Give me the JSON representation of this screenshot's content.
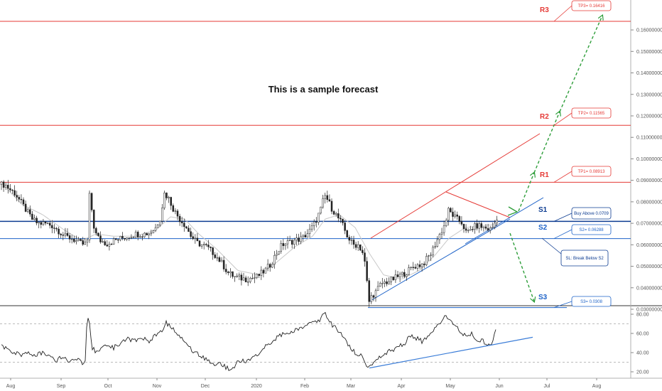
{
  "chart_data": {
    "type": "candlestick",
    "annotation": "This is a sample forecast",
    "price_axis": {
      "ylim": [
        0.0295,
        0.168
      ],
      "ticks": [
        0.03,
        0.04,
        0.05,
        0.06,
        0.07,
        0.08,
        0.09,
        0.1,
        0.11,
        0.12,
        0.13,
        0.14,
        0.15,
        0.16
      ],
      "tick_labels": [
        "0.03000000",
        "0.04000000",
        "0.05000000",
        "0.06000000",
        "0.07000000",
        "0.08000000",
        "0.09000000",
        "0.10000000",
        "0.11000000",
        "0.12000000",
        "0.13000000",
        "0.14000000",
        "0.15000000",
        "0.16000000"
      ]
    },
    "rsi_axis": {
      "ylim": [
        15,
        86
      ],
      "ticks": [
        20,
        40,
        60,
        80
      ],
      "tick_labels": [
        "20.00",
        "40.00",
        "60.00",
        "80.00"
      ],
      "dashed_levels": [
        30,
        70
      ]
    },
    "time_axis": {
      "labels": [
        "Aug",
        "Sep",
        "Oct",
        "Nov",
        "Dec",
        "2020",
        "Feb",
        "Mar",
        "Apr",
        "May",
        "Jun",
        "Jul",
        "Aug"
      ],
      "label_x": [
        15,
        86,
        152,
        221,
        289,
        361,
        429,
        494,
        565,
        634,
        703,
        770,
        840
      ]
    },
    "levels": [
      {
        "name": "R3",
        "value": 0.164,
        "color": "#e53935",
        "box": "TP3= 0.16416",
        "type": "resistance"
      },
      {
        "name": "R2",
        "value": 0.1156,
        "color": "#e53935",
        "box": "TP2= 0.11565",
        "type": "resistance"
      },
      {
        "name": "R1",
        "value": 0.0891,
        "color": "#e53935",
        "box": "TP1= 0.08913",
        "type": "resistance"
      },
      {
        "name": "S1",
        "value": 0.0709,
        "color": "#0d3c91",
        "box": "Buy Above 0.0709",
        "type": "support"
      },
      {
        "name": "S2",
        "value": 0.0629,
        "color": "#1e63c8",
        "box": "S2= 0.06288",
        "type": "support"
      },
      {
        "name": "S3",
        "value": 0.0308,
        "color": "#1e63c8",
        "box": "S3= 0.0308",
        "type": "support"
      }
    ],
    "stop_loss_box": "SL: Break Below S2",
    "price_series": {
      "keys": [
        [
          6,
          0.088
        ],
        [
          12,
          0.086
        ],
        [
          20,
          0.084
        ],
        [
          28,
          0.08
        ],
        [
          36,
          0.076
        ],
        [
          44,
          0.072
        ],
        [
          52,
          0.07
        ],
        [
          62,
          0.07
        ],
        [
          72,
          0.069
        ],
        [
          80,
          0.067
        ],
        [
          90,
          0.064
        ],
        [
          100,
          0.063
        ],
        [
          110,
          0.061
        ],
        [
          118,
          0.06
        ],
        [
          122,
          0.062
        ],
        [
          124,
          0.084
        ],
        [
          127,
          0.08
        ],
        [
          130,
          0.07
        ],
        [
          134,
          0.065
        ],
        [
          140,
          0.062
        ],
        [
          150,
          0.0605
        ],
        [
          160,
          0.062
        ],
        [
          170,
          0.063
        ],
        [
          180,
          0.064
        ],
        [
          190,
          0.065
        ],
        [
          200,
          0.065
        ],
        [
          210,
          0.0655
        ],
        [
          218,
          0.068
        ],
        [
          225,
          0.073
        ],
        [
          230,
          0.084
        ],
        [
          236,
          0.082
        ],
        [
          244,
          0.076
        ],
        [
          252,
          0.072
        ],
        [
          260,
          0.069
        ],
        [
          268,
          0.064
        ],
        [
          276,
          0.061
        ],
        [
          290,
          0.059
        ],
        [
          300,
          0.056
        ],
        [
          310,
          0.052
        ],
        [
          320,
          0.047
        ],
        [
          330,
          0.045
        ],
        [
          345,
          0.044
        ],
        [
          360,
          0.045
        ],
        [
          372,
          0.048
        ],
        [
          380,
          0.051
        ],
        [
          388,
          0.056
        ],
        [
          396,
          0.06
        ],
        [
          404,
          0.061
        ],
        [
          414,
          0.062
        ],
        [
          424,
          0.063
        ],
        [
          434,
          0.066
        ],
        [
          442,
          0.07
        ],
        [
          450,
          0.076
        ],
        [
          456,
          0.083
        ],
        [
          460,
          0.081
        ],
        [
          466,
          0.077
        ],
        [
          472,
          0.074
        ],
        [
          480,
          0.07
        ],
        [
          488,
          0.064
        ],
        [
          496,
          0.06
        ],
        [
          504,
          0.06
        ],
        [
          510,
          0.056
        ],
        [
          514,
          0.049
        ],
        [
          518,
          0.033
        ],
        [
          522,
          0.036
        ],
        [
          528,
          0.038
        ],
        [
          536,
          0.042
        ],
        [
          546,
          0.043
        ],
        [
          558,
          0.045
        ],
        [
          570,
          0.047
        ],
        [
          582,
          0.05
        ],
        [
          594,
          0.051
        ],
        [
          606,
          0.056
        ],
        [
          614,
          0.062
        ],
        [
          620,
          0.066
        ],
        [
          626,
          0.07
        ],
        [
          630,
          0.076
        ],
        [
          636,
          0.074
        ],
        [
          642,
          0.072
        ],
        [
          650,
          0.07
        ],
        [
          656,
          0.065
        ],
        [
          664,
          0.068
        ],
        [
          672,
          0.069
        ],
        [
          680,
          0.068
        ],
        [
          690,
          0.067
        ],
        [
          697,
          0.071
        ],
        [
          701,
          0.076
        ]
      ]
    },
    "moving_average": {
      "keys": [
        [
          10,
          0.086
        ],
        [
          30,
          0.079
        ],
        [
          60,
          0.074
        ],
        [
          90,
          0.067
        ],
        [
          115,
          0.062
        ],
        [
          135,
          0.065
        ],
        [
          160,
          0.064
        ],
        [
          190,
          0.064
        ],
        [
          220,
          0.067
        ],
        [
          240,
          0.073
        ],
        [
          260,
          0.072
        ],
        [
          280,
          0.065
        ],
        [
          305,
          0.058
        ],
        [
          335,
          0.048
        ],
        [
          365,
          0.046
        ],
        [
          390,
          0.052
        ],
        [
          415,
          0.059
        ],
        [
          440,
          0.064
        ],
        [
          458,
          0.072
        ],
        [
          478,
          0.074
        ],
        [
          500,
          0.068
        ],
        [
          520,
          0.056
        ],
        [
          540,
          0.046
        ],
        [
          565,
          0.044
        ],
        [
          590,
          0.048
        ],
        [
          612,
          0.055
        ],
        [
          632,
          0.063
        ],
        [
          655,
          0.068
        ],
        [
          680,
          0.069
        ],
        [
          705,
          0.0695
        ]
      ]
    },
    "rsi_series": {
      "keys": [
        [
          2,
          47
        ],
        [
          10,
          44
        ],
        [
          20,
          40
        ],
        [
          30,
          38
        ],
        [
          40,
          41
        ],
        [
          50,
          37
        ],
        [
          60,
          40
        ],
        [
          70,
          35
        ],
        [
          80,
          32
        ],
        [
          90,
          36
        ],
        [
          100,
          30
        ],
        [
          110,
          34
        ],
        [
          115,
          28
        ],
        [
          120,
          32
        ],
        [
          123,
          82
        ],
        [
          126,
          70
        ],
        [
          130,
          45
        ],
        [
          136,
          40
        ],
        [
          144,
          44
        ],
        [
          152,
          48
        ],
        [
          160,
          45
        ],
        [
          170,
          50
        ],
        [
          180,
          55
        ],
        [
          190,
          52
        ],
        [
          200,
          56
        ],
        [
          210,
          52
        ],
        [
          220,
          58
        ],
        [
          228,
          62
        ],
        [
          234,
          72
        ],
        [
          240,
          66
        ],
        [
          248,
          62
        ],
        [
          256,
          56
        ],
        [
          264,
          48
        ],
        [
          272,
          42
        ],
        [
          280,
          38
        ],
        [
          290,
          33
        ],
        [
          300,
          28
        ],
        [
          310,
          30
        ],
        [
          318,
          25
        ],
        [
          325,
          22
        ],
        [
          332,
          28
        ],
        [
          340,
          32
        ],
        [
          348,
          30
        ],
        [
          356,
          35
        ],
        [
          364,
          38
        ],
        [
          372,
          45
        ],
        [
          380,
          50
        ],
        [
          388,
          55
        ],
        [
          396,
          58
        ],
        [
          404,
          60
        ],
        [
          412,
          62
        ],
        [
          420,
          64
        ],
        [
          428,
          66
        ],
        [
          436,
          70
        ],
        [
          444,
          72
        ],
        [
          450,
          74
        ],
        [
          454,
          78
        ],
        [
          457,
          82
        ],
        [
          460,
          75
        ],
        [
          466,
          70
        ],
        [
          472,
          66
        ],
        [
          480,
          60
        ],
        [
          488,
          50
        ],
        [
          496,
          42
        ],
        [
          504,
          38
        ],
        [
          512,
          35
        ],
        [
          518,
          24
        ],
        [
          522,
          28
        ],
        [
          530,
          32
        ],
        [
          540,
          38
        ],
        [
          550,
          42
        ],
        [
          560,
          45
        ],
        [
          570,
          50
        ],
        [
          578,
          58
        ],
        [
          586,
          55
        ],
        [
          594,
          52
        ],
        [
          602,
          56
        ],
        [
          610,
          62
        ],
        [
          618,
          70
        ],
        [
          624,
          76
        ],
        [
          628,
          78
        ],
        [
          634,
          72
        ],
        [
          642,
          66
        ],
        [
          650,
          62
        ],
        [
          656,
          56
        ],
        [
          664,
          60
        ],
        [
          672,
          54
        ],
        [
          680,
          52
        ],
        [
          686,
          46
        ],
        [
          692,
          50
        ],
        [
          698,
          64
        ]
      ]
    }
  }
}
